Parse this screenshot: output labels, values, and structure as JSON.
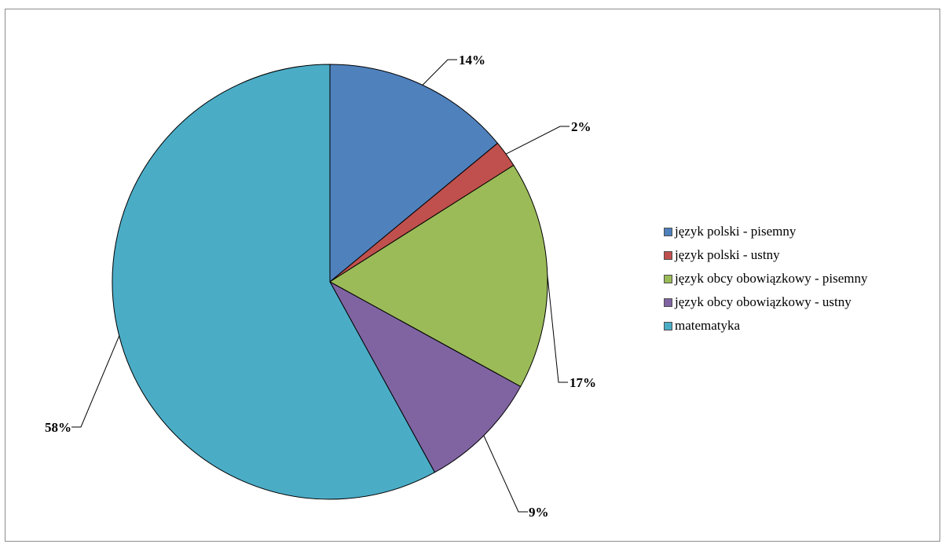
{
  "chart_data": {
    "type": "pie",
    "title": "",
    "categories": [
      "język polski - pisemny",
      "język polski - ustny",
      "język obcy obowiązkowy - pisemny",
      "język obcy obowiązkowy - ustny",
      "matematyka"
    ],
    "values": [
      14,
      2,
      17,
      9,
      58
    ],
    "labels": [
      "14%",
      "2%",
      "17%",
      "9%",
      "58%"
    ],
    "colors": [
      "#4f81bd",
      "#c0504d",
      "#9bbb59",
      "#8064a2",
      "#4bacc6"
    ],
    "start_angle_deg": 0,
    "direction": "clockwise",
    "legend_position": "right",
    "data_labels": "outside with leader lines"
  }
}
